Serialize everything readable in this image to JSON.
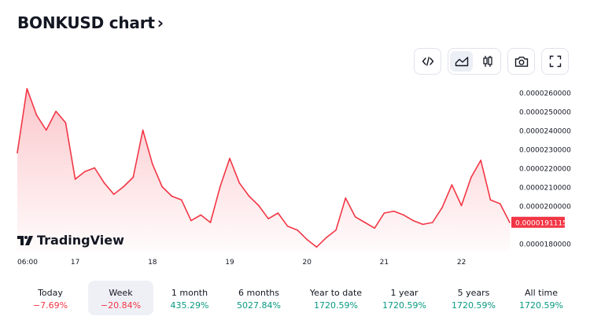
{
  "header": {
    "title": "BONKUSD chart",
    "chevron": "›"
  },
  "toolbar": {
    "buttons": [
      {
        "name": "embed-code-icon"
      },
      {
        "name": "area-chart-icon",
        "active": true
      },
      {
        "name": "candlestick-chart-icon"
      },
      {
        "name": "camera-icon"
      },
      {
        "name": "fullscreen-icon"
      }
    ]
  },
  "logo": {
    "text": "TradingView"
  },
  "chart_data": {
    "type": "area",
    "series": [
      {
        "color": "#f23645",
        "x": [
          "16 06:00",
          "16 09:00",
          "16 12:00",
          "16 15:00",
          "16 18:00",
          "16 21:00",
          "17 00:00",
          "17 03:00",
          "17 06:00",
          "17 09:00",
          "17 12:00",
          "17 15:00",
          "17 18:00",
          "17 21:00",
          "18 00:00",
          "18 03:00",
          "18 06:00",
          "18 09:00",
          "18 12:00",
          "18 15:00",
          "18 18:00",
          "18 21:00",
          "19 00:00",
          "19 03:00",
          "19 06:00",
          "19 09:00",
          "19 12:00",
          "19 15:00",
          "19 18:00",
          "19 21:00",
          "20 00:00",
          "20 03:00",
          "20 06:00",
          "20 09:00",
          "20 12:00",
          "20 15:00",
          "20 18:00",
          "20 21:00",
          "21 00:00",
          "21 03:00",
          "21 06:00",
          "21 09:00",
          "21 12:00",
          "21 15:00",
          "21 18:00",
          "21 21:00",
          "22 00:00",
          "22 03:00",
          "22 06:00",
          "22 09:00",
          "22 12:00",
          "22 15:00"
        ],
        "values": [
          2.28e-05,
          2.62e-05,
          2.48e-05,
          2.4e-05,
          2.5e-05,
          2.44e-05,
          2.14e-05,
          2.18e-05,
          2.2e-05,
          2.12e-05,
          2.06e-05,
          2.1e-05,
          2.15e-05,
          2.4e-05,
          2.22e-05,
          2.1e-05,
          2.05e-05,
          2.03e-05,
          1.92e-05,
          1.95e-05,
          1.91e-05,
          2.1e-05,
          2.25e-05,
          2.12e-05,
          2.05e-05,
          2e-05,
          1.93e-05,
          1.96e-05,
          1.89e-05,
          1.87e-05,
          1.82e-05,
          1.78e-05,
          1.83e-05,
          1.87e-05,
          2.04e-05,
          1.94e-05,
          1.91e-05,
          1.88e-05,
          1.96e-05,
          1.97e-05,
          1.95e-05,
          1.92e-05,
          1.9e-05,
          1.91e-05,
          1.99e-05,
          2.11e-05,
          2e-05,
          2.15e-05,
          2.24e-05,
          2.03e-05,
          2.01e-05,
          1.91e-05
        ]
      }
    ],
    "ylim": [
      1.76e-05,
      2.64e-05
    ],
    "y_ticks": [
      "0.0000260000",
      "0.0000250000",
      "0.0000240000",
      "0.0000230000",
      "0.0000220000",
      "0.0000210000",
      "0.0000200000",
      "0.0000180000"
    ],
    "x_ticks": [
      "06:00",
      "17",
      "18",
      "19",
      "20",
      "21",
      "22"
    ],
    "last_value_label": "0.0000191115"
  },
  "periods": [
    {
      "label": "Today",
      "change": "−7.69%",
      "dir": "neg"
    },
    {
      "label": "Week",
      "change": "−20.84%",
      "dir": "neg",
      "active": true
    },
    {
      "label": "1 month",
      "change": "435.29%",
      "dir": "pos"
    },
    {
      "label": "6 months",
      "change": "5027.84%",
      "dir": "pos"
    },
    {
      "label": "Year to date",
      "change": "1720.59%",
      "dir": "pos"
    },
    {
      "label": "1 year",
      "change": "1720.59%",
      "dir": "pos"
    },
    {
      "label": "5 years",
      "change": "1720.59%",
      "dir": "pos"
    },
    {
      "label": "All time",
      "change": "1720.59%",
      "dir": "pos"
    }
  ]
}
